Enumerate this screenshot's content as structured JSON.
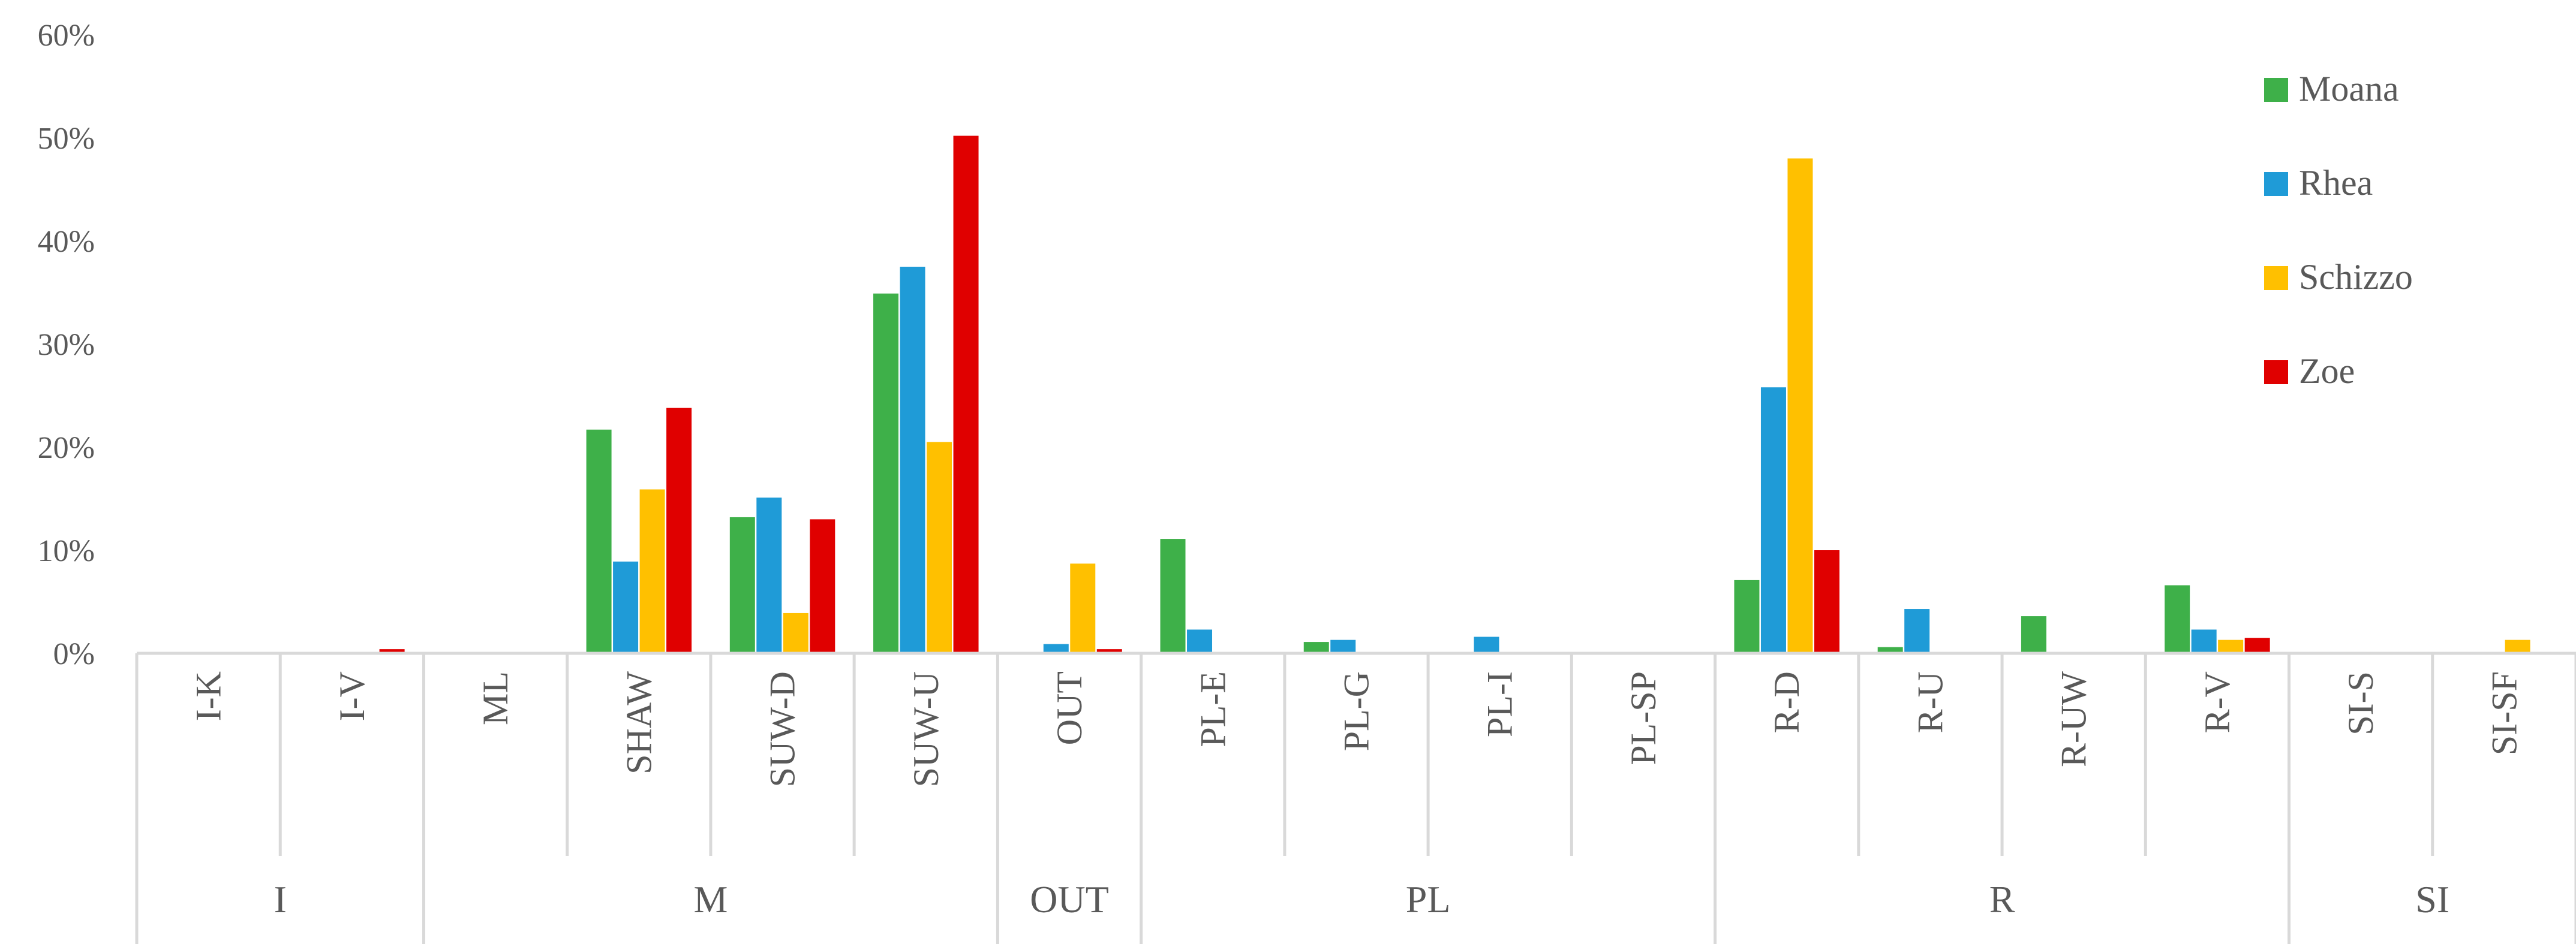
{
  "chart_data": {
    "type": "bar",
    "title": "",
    "xlabel": "",
    "ylabel": "",
    "ylim": [
      0,
      0.6
    ],
    "yticks": [
      "0%",
      "10%",
      "20%",
      "30%",
      "40%",
      "50%",
      "60%"
    ],
    "grid": false,
    "legend_position": "top-right",
    "categories": [
      "I-K",
      "I-V",
      "ML",
      "SHAW",
      "SUW-D",
      "SUW-U",
      "OUT",
      "PL-E",
      "PL-G",
      "PL-I",
      "PL-SP",
      "R-D",
      "R-U",
      "R-UW",
      "R-V",
      "SI-S",
      "SI-SF"
    ],
    "groups": [
      {
        "label": "I",
        "categories": [
          "I-K",
          "I-V"
        ]
      },
      {
        "label": "M",
        "categories": [
          "ML",
          "SHAW",
          "SUW-D",
          "SUW-U"
        ]
      },
      {
        "label": "OUT",
        "categories": [
          "OUT"
        ]
      },
      {
        "label": "PL",
        "categories": [
          "PL-E",
          "PL-G",
          "PL-I",
          "PL-SP"
        ]
      },
      {
        "label": "R",
        "categories": [
          "R-D",
          "R-U",
          "R-UW",
          "R-V"
        ]
      },
      {
        "label": "SI",
        "categories": [
          "SI-S",
          "SI-SF"
        ]
      }
    ],
    "series": [
      {
        "name": "Moana",
        "color": "#3eb049",
        "values": [
          0,
          0,
          0,
          0.217,
          0.132,
          0.349,
          0,
          0.111,
          0.011,
          0,
          0,
          0.071,
          0.006,
          0.036,
          0.066,
          0,
          0
        ]
      },
      {
        "name": "Rhea",
        "color": "#1f9bd7",
        "values": [
          0,
          0,
          0,
          0.089,
          0.151,
          0.375,
          0.009,
          0.023,
          0.013,
          0.016,
          0,
          0.258,
          0.043,
          0,
          0.023,
          0,
          0
        ]
      },
      {
        "name": "Schizzo",
        "color": "#ffc000",
        "values": [
          0,
          0,
          0,
          0.159,
          0.039,
          0.205,
          0.087,
          0,
          0,
          0,
          0,
          0.48,
          0,
          0,
          0.013,
          0,
          0.013
        ]
      },
      {
        "name": "Zoe",
        "color": "#e00000",
        "values": [
          0,
          0.004,
          0,
          0.238,
          0.13,
          0.502,
          0.004,
          0,
          0,
          0,
          0,
          0.1,
          0,
          0,
          0.015,
          0,
          0
        ]
      }
    ]
  }
}
